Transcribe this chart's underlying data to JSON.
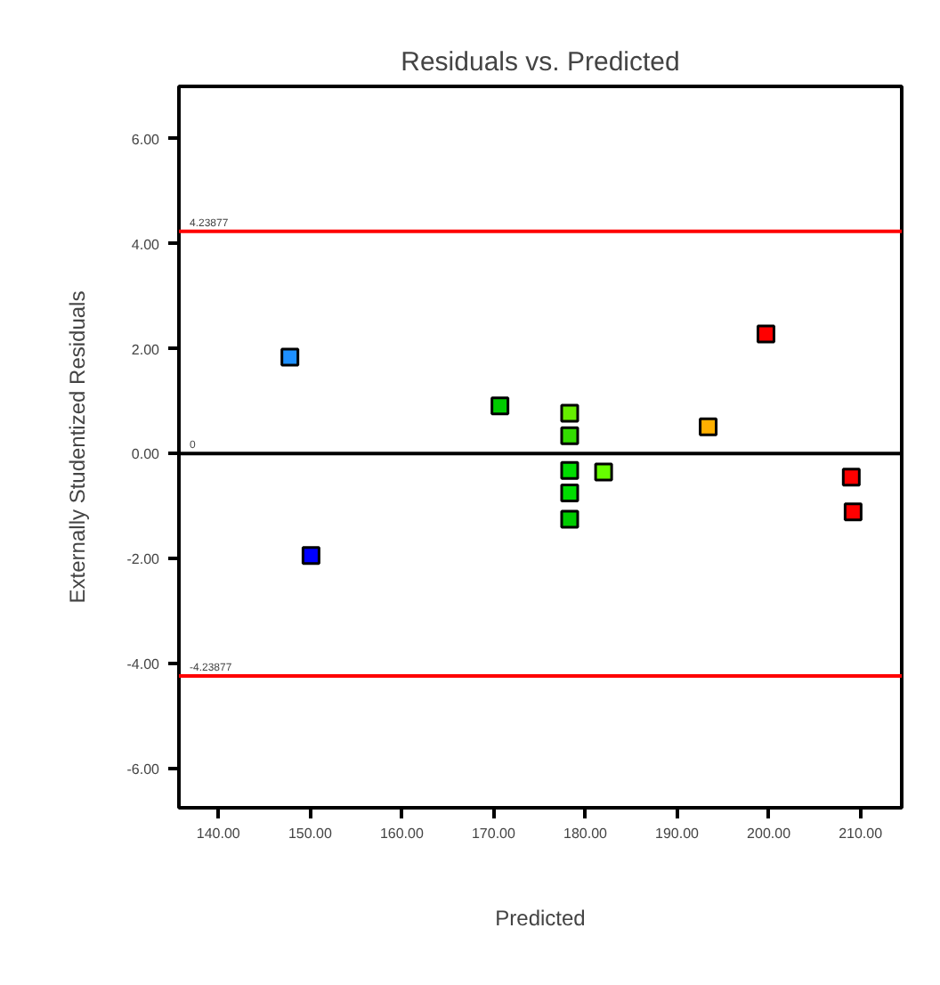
{
  "chart_data": {
    "type": "scatter",
    "title": "Residuals vs. Predicted",
    "xlabel": "Predicted",
    "ylabel": "Externally Studentized Residuals",
    "x": [
      147.8,
      150.1,
      170.7,
      178.3,
      178.3,
      178.3,
      178.3,
      178.3,
      182.0,
      193.4,
      199.7,
      209.0,
      209.2
    ],
    "values": [
      1.84,
      -1.94,
      0.91,
      0.77,
      0.34,
      -0.32,
      -0.75,
      -1.25,
      -0.35,
      0.51,
      2.28,
      -0.45,
      -1.11
    ],
    "colors": [
      "#1e90ff",
      "#0000ff",
      "#00cc00",
      "#66ee00",
      "#33dd00",
      "#00dd00",
      "#00dd00",
      "#00cc00",
      "#66ff00",
      "#ffb000",
      "#ff0000",
      "#ff0000",
      "#ff0000"
    ],
    "marker": "square",
    "grid": false,
    "xlim": [
      135.7,
      214.5
    ],
    "ylim": [
      -6.75,
      7.0
    ],
    "xticks": [
      {
        "value": 140,
        "label": "140.00"
      },
      {
        "value": 150,
        "label": "150.00"
      },
      {
        "value": 160,
        "label": "160.00"
      },
      {
        "value": 170,
        "label": "170.00"
      },
      {
        "value": 180,
        "label": "180.00"
      },
      {
        "value": 190,
        "label": "190.00"
      },
      {
        "value": 200,
        "label": "200.00"
      },
      {
        "value": 210,
        "label": "210.00"
      }
    ],
    "yticks": [
      {
        "value": -6,
        "label": "-6.00"
      },
      {
        "value": -4,
        "label": "-4.00"
      },
      {
        "value": -2,
        "label": "-2.00"
      },
      {
        "value": 0,
        "label": "0.00"
      },
      {
        "value": 2,
        "label": "2.00"
      },
      {
        "value": 4,
        "label": "4.00"
      },
      {
        "value": 6,
        "label": "6.00"
      }
    ],
    "ref_lines": [
      {
        "axis": "y",
        "value": 4.23877,
        "label": "4.23877",
        "color": "#ff0000"
      },
      {
        "axis": "y",
        "value": 0,
        "label": "0",
        "color": "#000000"
      },
      {
        "axis": "y",
        "value": -4.23877,
        "label": "-4.23877",
        "color": "#ff0000"
      }
    ]
  }
}
